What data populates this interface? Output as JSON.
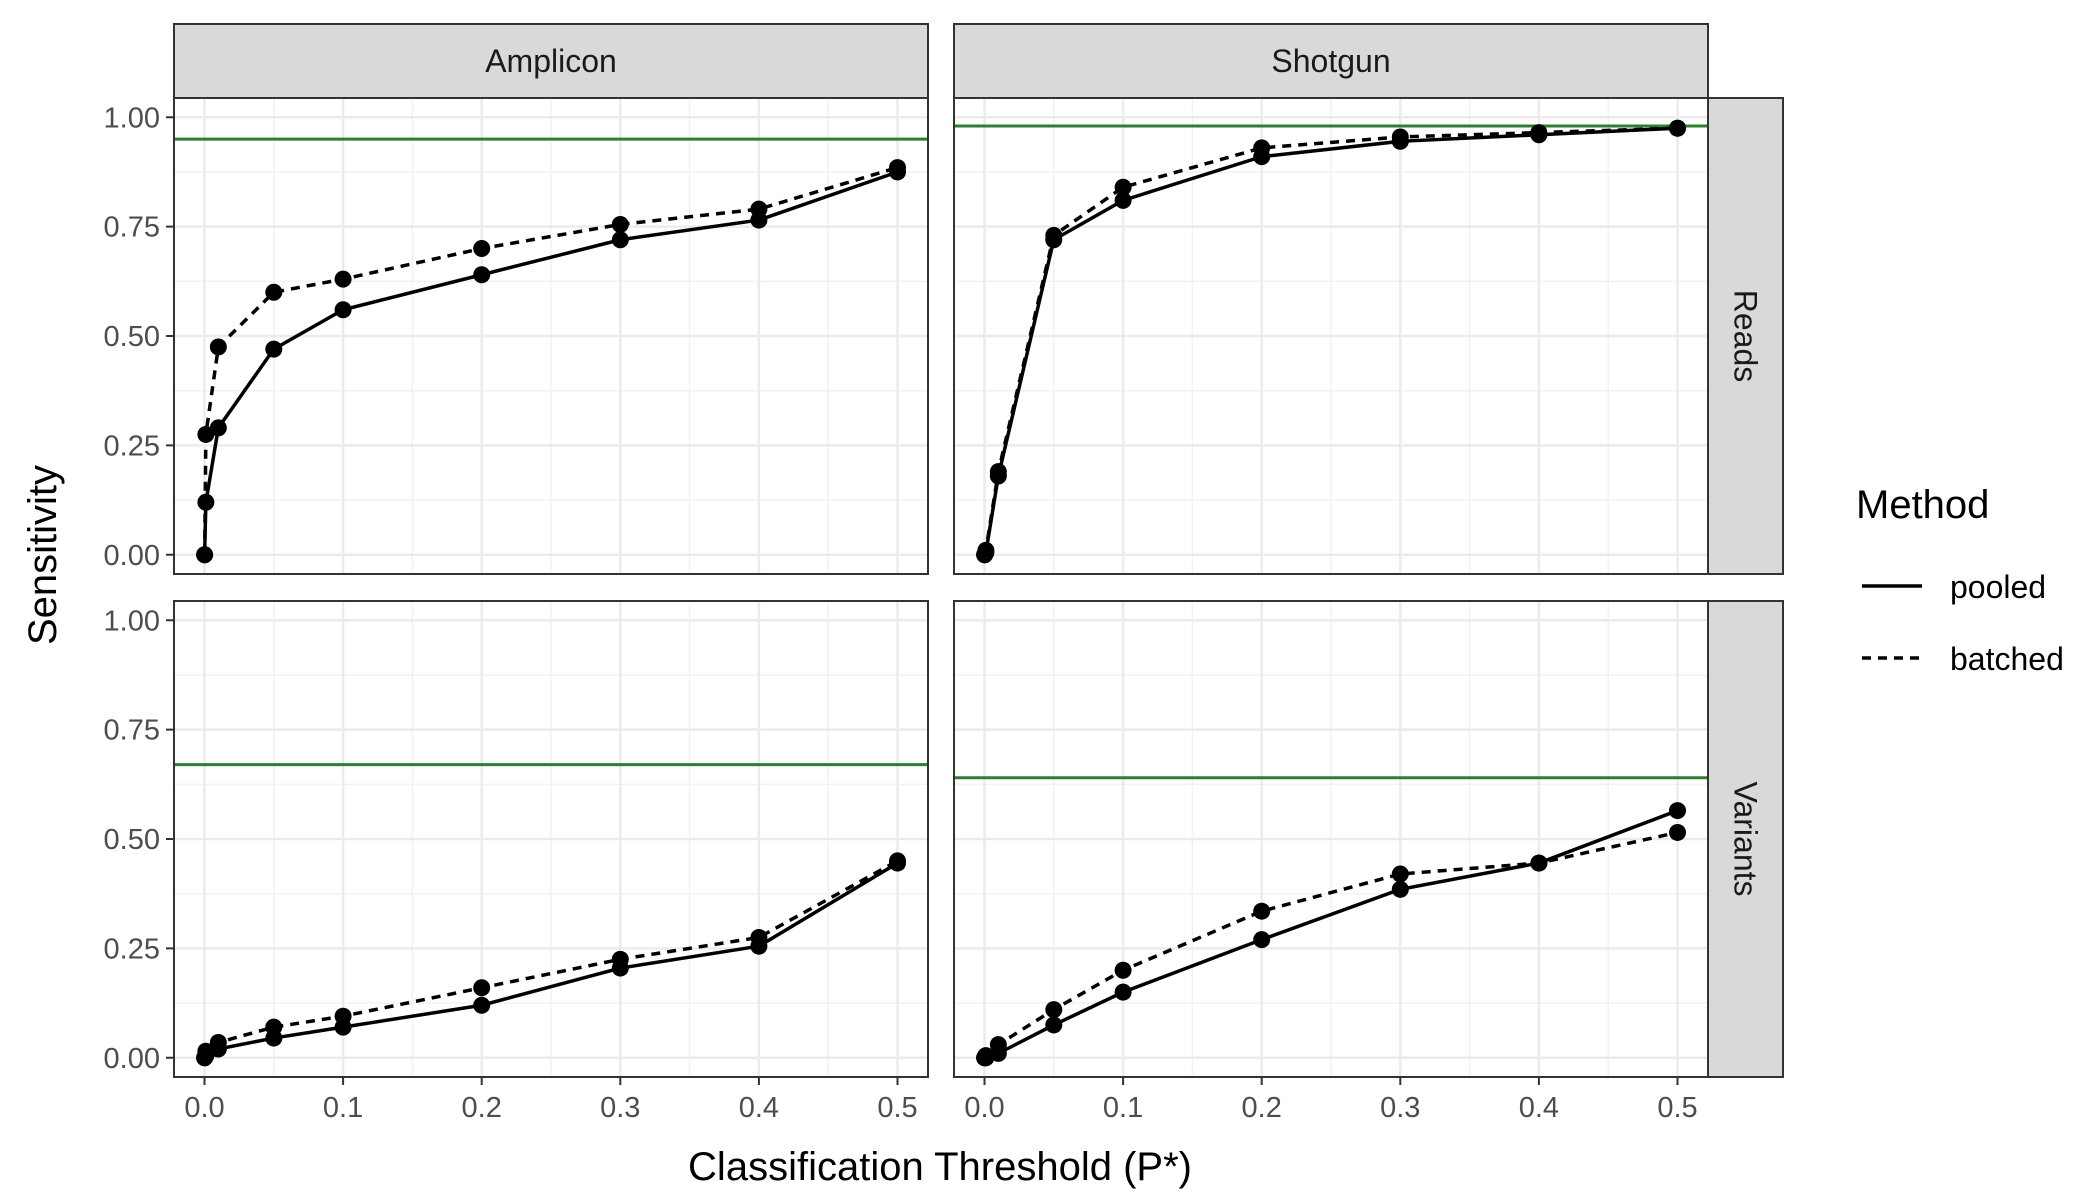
{
  "chart_data": {
    "type": "line",
    "x_label": "Classification Threshold (P*)",
    "y_label": "Sensitivity",
    "column_strips": [
      "Amplicon",
      "Shotgun"
    ],
    "row_strips": [
      "Reads",
      "Variants"
    ],
    "x_ticks": [
      0.0,
      0.1,
      0.2,
      0.3,
      0.4,
      0.5
    ],
    "x_tick_labels": [
      "0.0",
      "0.1",
      "0.2",
      "0.3",
      "0.4",
      "0.5"
    ],
    "y_ticks": [
      0.0,
      0.25,
      0.5,
      0.75,
      1.0
    ],
    "y_tick_labels": [
      "0.00",
      "0.25",
      "0.50",
      "0.75",
      "1.00"
    ],
    "xlim": [
      -0.022,
      0.522
    ],
    "ylim": [
      -0.044,
      1.044
    ],
    "grid": true,
    "legend": {
      "title": "Method",
      "position": "right",
      "entries": [
        {
          "label": "pooled",
          "linetype": "solid"
        },
        {
          "label": "batched",
          "linetype": "dashed"
        }
      ]
    },
    "colors": {
      "line": "#000000",
      "reference": "#2e7d32",
      "strip_fill": "#d9d9d9",
      "grid": "#ebebeb"
    },
    "x": [
      0.0001,
      0.001,
      0.01,
      0.05,
      0.1,
      0.2,
      0.3,
      0.4,
      0.5
    ],
    "panels": [
      {
        "column": "Amplicon",
        "row": "Reads",
        "reference_line": 0.95,
        "series": [
          {
            "name": "pooled",
            "values": [
              0.0,
              0.12,
              0.29,
              0.47,
              0.56,
              0.64,
              0.72,
              0.765,
              0.875
            ]
          },
          {
            "name": "batched",
            "values": [
              0.0,
              0.275,
              0.475,
              0.6,
              0.63,
              0.7,
              0.755,
              0.79,
              0.885
            ]
          }
        ]
      },
      {
        "column": "Shotgun",
        "row": "Reads",
        "reference_line": 0.98,
        "series": [
          {
            "name": "pooled",
            "values": [
              0.0,
              0.005,
              0.18,
              0.72,
              0.81,
              0.91,
              0.945,
              0.96,
              0.975
            ]
          },
          {
            "name": "batched",
            "values": [
              0.0,
              0.01,
              0.19,
              0.73,
              0.84,
              0.93,
              0.955,
              0.965,
              0.975
            ]
          }
        ]
      },
      {
        "column": "Amplicon",
        "row": "Variants",
        "reference_line": 0.67,
        "series": [
          {
            "name": "pooled",
            "values": [
              0.0,
              0.005,
              0.02,
              0.045,
              0.07,
              0.12,
              0.205,
              0.255,
              0.445
            ]
          },
          {
            "name": "batched",
            "values": [
              0.0,
              0.015,
              0.035,
              0.07,
              0.095,
              0.16,
              0.225,
              0.275,
              0.45
            ]
          }
        ]
      },
      {
        "column": "Shotgun",
        "row": "Variants",
        "reference_line": 0.64,
        "series": [
          {
            "name": "pooled",
            "values": [
              0.0,
              0.0,
              0.01,
              0.075,
              0.15,
              0.27,
              0.385,
              0.445,
              0.565
            ]
          },
          {
            "name": "batched",
            "values": [
              0.0,
              0.005,
              0.03,
              0.11,
              0.2,
              0.335,
              0.42,
              0.445,
              0.515
            ]
          }
        ]
      }
    ]
  }
}
